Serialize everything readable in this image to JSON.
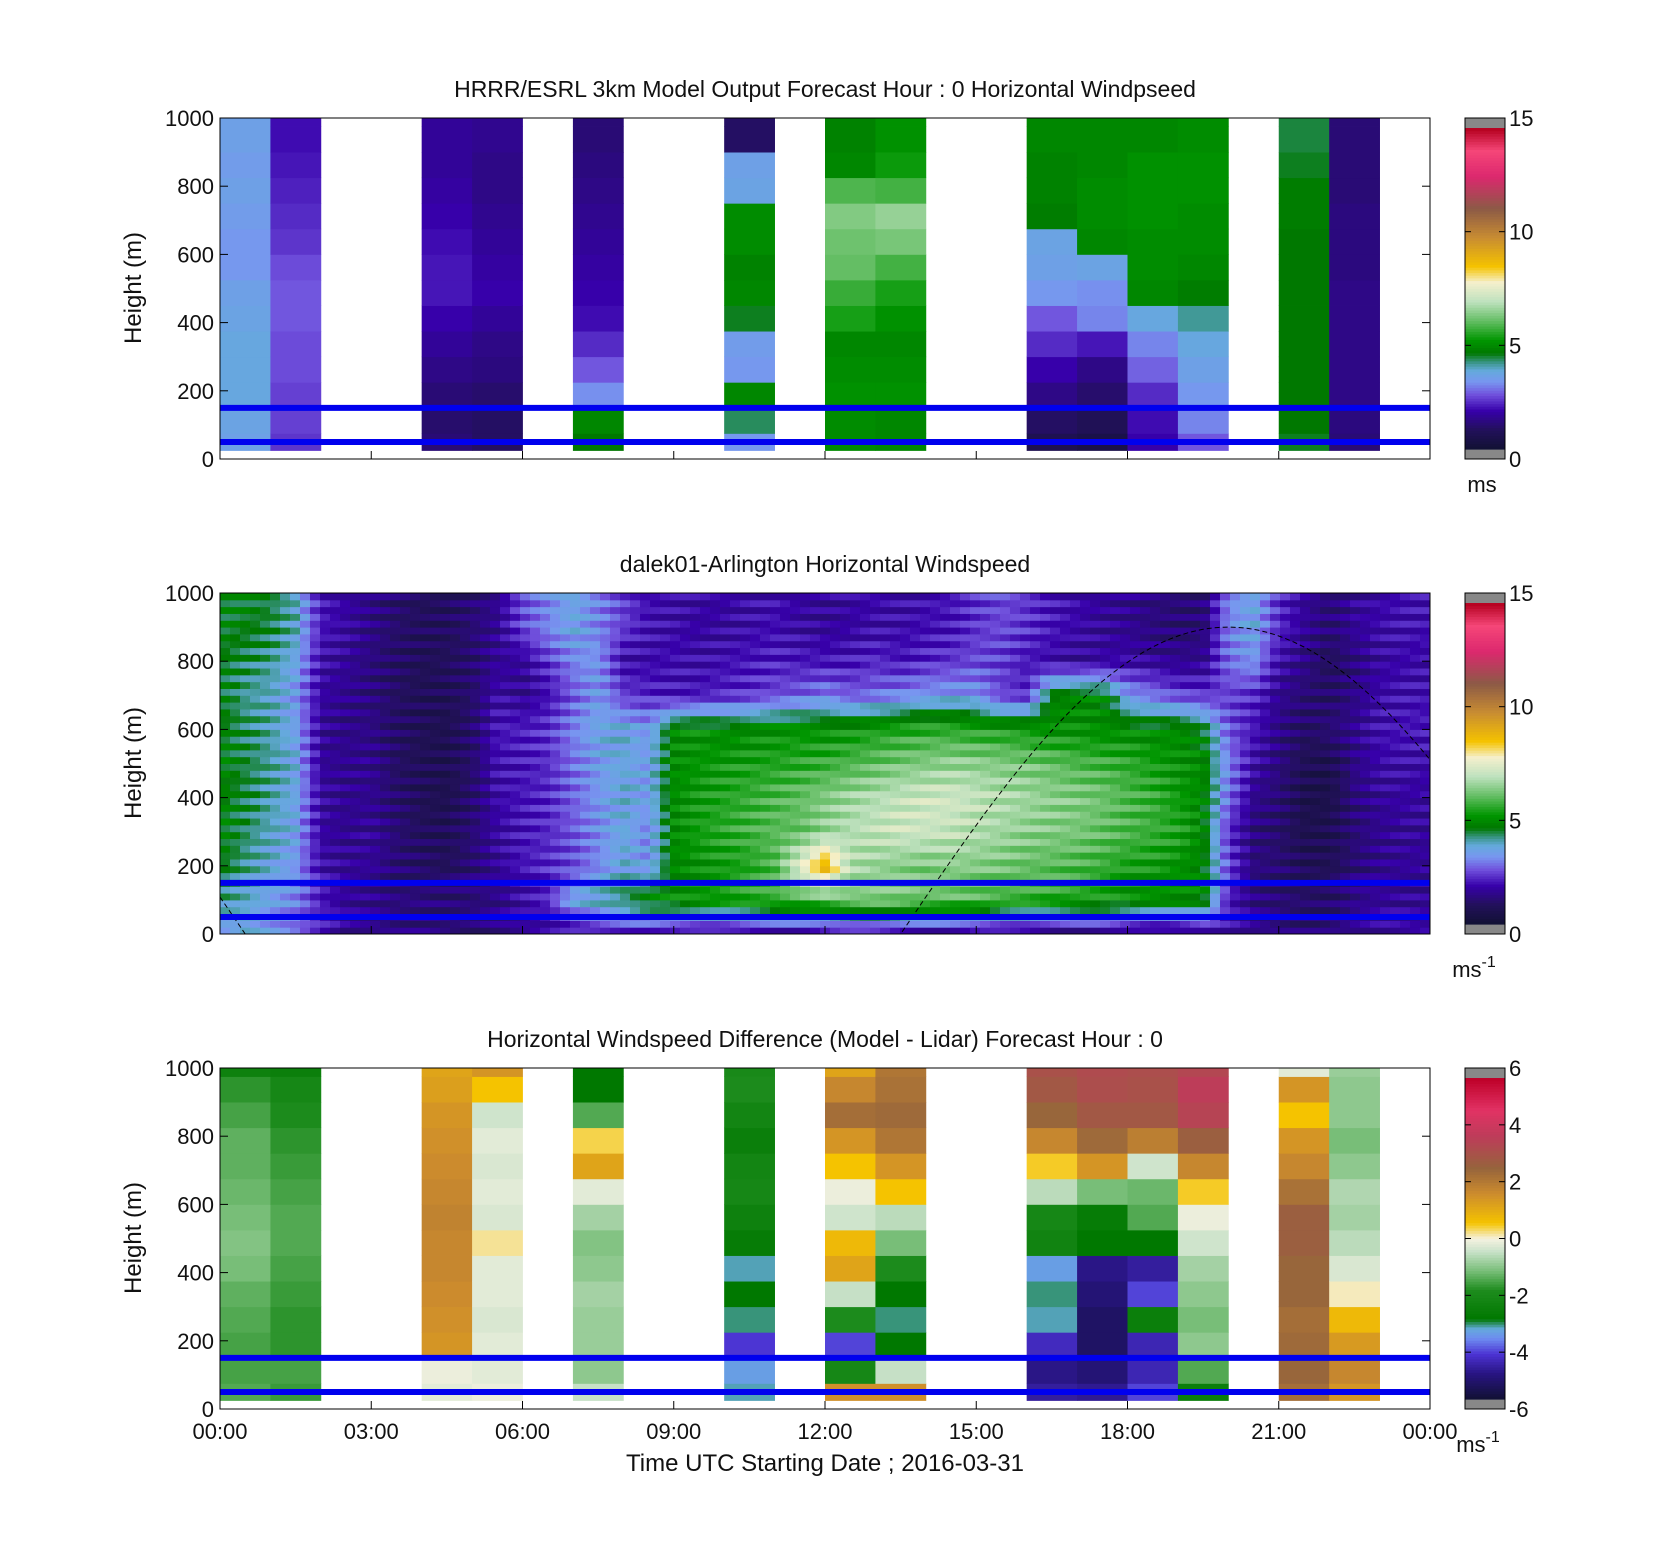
{
  "figure": {
    "xlabel": "Time UTC  Starting Date ; 2016-03-31",
    "x_ticks": [
      "00:00",
      "03:00",
      "06:00",
      "09:00",
      "12:00",
      "15:00",
      "18:00",
      "21:00",
      "00:00"
    ],
    "x_range_hours": [
      0,
      24
    ]
  },
  "chart_data": [
    {
      "type": "heatmap",
      "title": "HRRR/ESRL 3km Model Output   Forecast Hour : 0 Horizontal Windpseed",
      "ylabel": "Height (m)",
      "y_ticks": [
        "0",
        "200",
        "400",
        "600",
        "800",
        "1000"
      ],
      "ylim": [
        0,
        1000
      ],
      "colorbar": {
        "ticks": [
          "0",
          "5",
          "10",
          "15"
        ],
        "range": [
          0,
          15
        ],
        "unit": "ms",
        "unit_sup": ""
      },
      "reference_lines_m": [
        50,
        150
      ],
      "columns_start_hour": [
        0,
        1,
        4,
        5,
        7,
        10,
        12,
        13,
        16,
        17,
        18,
        19,
        21,
        22
      ],
      "column_width_hours": 1,
      "data_bottom_m": 25,
      "heights_m": [
        0,
        75,
        150,
        225,
        300,
        375,
        450,
        525,
        600,
        675,
        750,
        825,
        900,
        975
      ],
      "columns": [
        [
          3.4,
          3.5,
          3.6,
          3.6,
          3.6,
          3.5,
          3.4,
          3.2,
          3.2,
          3.3,
          3.4,
          3.3,
          3.4,
          3.4
        ],
        [
          2.3,
          2.4,
          2.4,
          2.5,
          2.5,
          2.6,
          2.6,
          2.5,
          2.3,
          2.2,
          2.1,
          2.0,
          1.9,
          1.9
        ],
        [
          1.2,
          1.1,
          1.2,
          1.4,
          1.6,
          1.8,
          2.0,
          2.0,
          1.9,
          1.8,
          1.7,
          1.6,
          1.6,
          1.6
        ],
        [
          1.0,
          1.0,
          1.1,
          1.3,
          1.4,
          1.6,
          1.8,
          1.7,
          1.6,
          1.5,
          1.4,
          1.4,
          1.5,
          1.5
        ],
        [
          4.5,
          4.8,
          3.1,
          2.6,
          2.2,
          1.9,
          1.8,
          1.7,
          1.6,
          1.5,
          1.4,
          1.3,
          1.2,
          1.2
        ],
        [
          3.2,
          4.2,
          4.8,
          3.2,
          3.3,
          4.4,
          4.8,
          4.7,
          4.9,
          4.9,
          3.5,
          3.4,
          1.0,
          1.0
        ],
        [
          4.9,
          4.9,
          5.0,
          4.9,
          4.8,
          5.3,
          5.6,
          6.0,
          6.1,
          6.3,
          5.8,
          4.8,
          4.7,
          4.7
        ],
        [
          4.8,
          4.8,
          5.0,
          4.9,
          4.8,
          5.0,
          5.3,
          5.7,
          6.2,
          6.5,
          5.7,
          5.2,
          5.0,
          5.0
        ],
        [
          0.7,
          1.0,
          1.4,
          1.8,
          2.2,
          2.6,
          3.2,
          3.4,
          3.5,
          4.6,
          4.7,
          4.7,
          4.8,
          4.8
        ],
        [
          0.5,
          0.8,
          1.1,
          1.4,
          2.0,
          3.0,
          3.1,
          3.5,
          4.8,
          4.9,
          4.9,
          4.8,
          4.8,
          4.8
        ],
        [
          1.8,
          1.9,
          2.2,
          2.7,
          3.0,
          3.6,
          4.8,
          4.9,
          4.9,
          5.0,
          5.0,
          5.0,
          4.8,
          4.8
        ],
        [
          2.6,
          3.0,
          3.2,
          3.4,
          3.6,
          4.0,
          4.6,
          4.8,
          4.9,
          4.9,
          5.0,
          5.0,
          4.9,
          4.9
        ],
        [
          4.4,
          4.5,
          4.5,
          4.5,
          4.5,
          4.5,
          4.5,
          4.5,
          4.5,
          4.6,
          4.6,
          4.4,
          4.3,
          4.3
        ],
        [
          1.2,
          1.3,
          1.4,
          1.4,
          1.4,
          1.4,
          1.4,
          1.3,
          1.3,
          1.3,
          1.2,
          1.2,
          1.2,
          1.2
        ]
      ]
    },
    {
      "type": "heatmap",
      "title": "dalek01-Arlington  Horizontal Windspeed",
      "ylabel": "Height (m)",
      "y_ticks": [
        "0",
        "200",
        "400",
        "600",
        "800",
        "1000"
      ],
      "ylim": [
        0,
        1000
      ],
      "colorbar": {
        "ticks": [
          "0",
          "5",
          "10",
          "15"
        ],
        "range": [
          0,
          15
        ],
        "unit": "ms",
        "unit_sup": "-1"
      },
      "reference_lines_m": [
        50,
        150
      ],
      "time_hours": [
        0.0,
        0.5,
        1.0,
        1.5,
        2.0,
        2.5,
        3.0,
        3.5,
        4.0,
        4.5,
        5.0,
        5.5,
        6.0,
        6.5,
        7.0,
        7.5,
        8.0,
        8.5,
        9.0,
        9.5,
        10.0,
        10.5,
        11.0,
        11.5,
        12.0,
        12.5,
        13.0,
        13.5,
        14.0,
        14.5,
        15.0,
        15.5,
        16.0,
        16.5,
        17.0,
        17.5,
        18.0,
        18.5,
        19.0,
        19.5,
        20.0,
        20.5,
        21.0,
        21.5,
        22.0,
        22.5,
        23.0,
        23.5
      ],
      "heights_m": [
        0,
        100,
        200,
        300,
        400,
        500,
        600,
        700,
        800,
        900
      ],
      "columns": [
        [
          3.0,
          4.0,
          4.5,
          4.7,
          4.7,
          4.7,
          4.6,
          4.5,
          4.5,
          4.5
        ],
        [
          3.5,
          3.8,
          4.0,
          4.2,
          4.3,
          4.3,
          4.2,
          4.0,
          4.2,
          4.5
        ],
        [
          3.2,
          3.4,
          3.6,
          3.8,
          3.9,
          4.0,
          3.9,
          3.8,
          4.0,
          4.3
        ],
        [
          2.8,
          3.0,
          3.2,
          3.4,
          3.5,
          3.5,
          3.4,
          3.2,
          3.5,
          3.8
        ],
        [
          2.2,
          2.0,
          1.8,
          1.7,
          1.7,
          1.6,
          1.6,
          1.7,
          1.8,
          2.0
        ],
        [
          1.5,
          1.6,
          1.6,
          1.5,
          1.5,
          1.5,
          1.4,
          1.5,
          1.6,
          1.7
        ],
        [
          1.4,
          1.5,
          1.6,
          1.6,
          1.5,
          1.5,
          1.4,
          1.3,
          1.3,
          1.4
        ],
        [
          1.3,
          1.3,
          1.2,
          1.2,
          1.1,
          1.0,
          1.0,
          1.0,
          1.0,
          1.1
        ],
        [
          1.4,
          1.3,
          1.0,
          0.9,
          0.8,
          0.8,
          0.8,
          0.8,
          0.8,
          0.9
        ],
        [
          1.3,
          1.2,
          0.9,
          0.8,
          0.7,
          0.7,
          0.7,
          0.8,
          0.9,
          0.9
        ],
        [
          1.2,
          1.2,
          1.2,
          1.2,
          1.1,
          1.1,
          1.1,
          1.1,
          1.1,
          1.2
        ],
        [
          1.4,
          1.4,
          1.6,
          1.7,
          1.8,
          1.9,
          2.0,
          1.8,
          1.6,
          1.5
        ],
        [
          1.5,
          1.8,
          2.0,
          2.0,
          2.0,
          2.0,
          2.1,
          1.5,
          1.6,
          2.5
        ],
        [
          1.6,
          2.2,
          2.2,
          2.2,
          2.2,
          2.2,
          2.3,
          1.9,
          2.3,
          3.0
        ],
        [
          1.8,
          3.5,
          2.5,
          2.6,
          2.7,
          2.8,
          3.0,
          2.6,
          3.0,
          3.5
        ],
        [
          2.0,
          3.8,
          3.0,
          3.1,
          3.2,
          3.3,
          3.5,
          3.3,
          3.2,
          3.0
        ],
        [
          2.0,
          4.2,
          3.6,
          3.6,
          3.6,
          3.6,
          3.6,
          2.4,
          1.8,
          2.4
        ],
        [
          1.8,
          4.8,
          3.2,
          3.0,
          3.3,
          3.3,
          3.2,
          2.2,
          1.8,
          1.9
        ],
        [
          1.6,
          5.0,
          4.8,
          4.9,
          4.9,
          4.9,
          4.9,
          2.0,
          1.9,
          1.8
        ],
        [
          1.5,
          5.2,
          5.0,
          5.3,
          5.2,
          5.1,
          5.0,
          2.0,
          1.8,
          1.7
        ],
        [
          1.5,
          5.3,
          5.2,
          5.5,
          5.4,
          5.2,
          4.8,
          2.2,
          1.9,
          1.7
        ],
        [
          1.6,
          5.5,
          5.4,
          5.7,
          5.6,
          5.3,
          4.9,
          2.3,
          2.0,
          1.8
        ],
        [
          1.5,
          5.6,
          5.8,
          5.9,
          5.8,
          5.4,
          5.0,
          2.5,
          2.1,
          1.9
        ],
        [
          1.4,
          5.8,
          7.5,
          6.0,
          6.0,
          5.5,
          5.1,
          2.7,
          2.0,
          1.7
        ],
        [
          1.5,
          6.0,
          9.0,
          6.5,
          6.3,
          5.6,
          5.0,
          3.0,
          2.0,
          1.6
        ],
        [
          1.6,
          6.2,
          6.8,
          6.8,
          6.6,
          5.8,
          5.1,
          2.6,
          2.0,
          1.7
        ],
        [
          1.6,
          6.3,
          6.5,
          7.0,
          6.8,
          6.0,
          5.3,
          2.8,
          2.2,
          1.8
        ],
        [
          1.5,
          6.2,
          6.3,
          7.2,
          7.0,
          6.2,
          5.4,
          3.0,
          2.0,
          1.8
        ],
        [
          1.4,
          6.0,
          6.2,
          7.1,
          7.2,
          6.3,
          5.5,
          3.2,
          2.2,
          1.9
        ],
        [
          1.3,
          6.0,
          6.4,
          7.0,
          7.2,
          6.5,
          5.5,
          3.3,
          2.3,
          2.0
        ],
        [
          1.4,
          5.9,
          6.3,
          6.8,
          7.0,
          6.4,
          5.4,
          3.2,
          2.5,
          2.3
        ],
        [
          1.3,
          5.7,
          6.2,
          6.6,
          6.8,
          6.3,
          5.3,
          2.4,
          2.4,
          2.5
        ],
        [
          1.2,
          5.6,
          6.0,
          6.4,
          6.6,
          6.2,
          5.2,
          2.2,
          2.0,
          2.3
        ],
        [
          1.1,
          5.4,
          5.9,
          6.3,
          6.4,
          6.0,
          5.0,
          4.6,
          1.8,
          2.0
        ],
        [
          1.2,
          5.3,
          5.8,
          6.2,
          6.3,
          5.8,
          5.0,
          4.8,
          1.6,
          1.8
        ],
        [
          1.3,
          5.2,
          5.6,
          6.0,
          6.1,
          5.7,
          4.9,
          4.8,
          1.7,
          1.6
        ],
        [
          1.2,
          5.0,
          5.3,
          5.8,
          5.8,
          5.5,
          4.9,
          3.2,
          1.8,
          1.5
        ],
        [
          1.1,
          5.0,
          5.2,
          5.6,
          5.6,
          5.3,
          4.8,
          2.9,
          1.6,
          1.3
        ],
        [
          1.2,
          4.9,
          5.0,
          5.4,
          5.2,
          5.0,
          4.9,
          2.5,
          1.5,
          1.2
        ],
        [
          1.5,
          4.8,
          4.7,
          4.8,
          4.8,
          4.9,
          4.5,
          2.3,
          1.5,
          1.2
        ],
        [
          1.8,
          2.0,
          2.5,
          2.2,
          2.8,
          3.0,
          2.6,
          2.4,
          2.8,
          3.0
        ],
        [
          1.5,
          1.4,
          1.3,
          1.3,
          1.5,
          1.8,
          2.0,
          2.2,
          3.2,
          3.5
        ],
        [
          1.3,
          1.2,
          1.2,
          1.1,
          1.2,
          1.3,
          1.4,
          1.5,
          1.8,
          2.2
        ],
        [
          1.2,
          1.1,
          0.8,
          0.7,
          0.6,
          0.8,
          1.0,
          1.2,
          1.4,
          1.6
        ],
        [
          1.4,
          1.0,
          0.8,
          0.7,
          0.6,
          0.6,
          1.2,
          1.0,
          0.9,
          1.2
        ],
        [
          1.6,
          1.4,
          1.2,
          1.2,
          1.3,
          1.4,
          1.5,
          1.4,
          1.3,
          1.6
        ],
        [
          1.7,
          1.6,
          1.5,
          1.5,
          1.6,
          1.8,
          1.9,
          1.8,
          1.7,
          1.8
        ],
        [
          1.7,
          1.6,
          1.6,
          1.6,
          1.7,
          1.8,
          2.0,
          1.9,
          1.8,
          1.9
        ]
      ]
    },
    {
      "type": "heatmap",
      "title": "Horizontal Windspeed Difference (Model - Lidar) Forecast Hour : 0",
      "ylabel": "Height (m)",
      "y_ticks": [
        "0",
        "200",
        "400",
        "600",
        "800",
        "1000"
      ],
      "ylim": [
        0,
        1000
      ],
      "colorbar": {
        "ticks": [
          "-6",
          "-4",
          "-2",
          "0",
          "2",
          "4",
          "6"
        ],
        "range": [
          -6,
          6
        ],
        "unit": "ms",
        "unit_sup": "-1"
      },
      "reference_lines_m": [
        50,
        150
      ],
      "columns_start_hour": [
        0,
        1,
        4,
        5,
        7,
        10,
        12,
        13,
        16,
        17,
        18,
        19,
        21,
        22
      ],
      "column_width_hours": 1,
      "data_bottom_m": 25,
      "heights_m": [
        0,
        75,
        150,
        225,
        300,
        375,
        450,
        525,
        600,
        675,
        750,
        825,
        900,
        975
      ],
      "columns": [
        [
          -1.5,
          -1.6,
          -1.6,
          -1.5,
          -1.4,
          -1.2,
          -1.1,
          -1.2,
          -1.3,
          -1.4,
          -1.4,
          -1.6,
          -1.8,
          -2.5
        ],
        [
          -1.7,
          -1.6,
          -1.8,
          -1.8,
          -1.7,
          -1.6,
          -1.5,
          -1.5,
          -1.6,
          -1.7,
          -1.8,
          -2.0,
          -2.2,
          -2.6
        ],
        [
          -0.2,
          -0.1,
          1.5,
          1.6,
          1.7,
          1.8,
          1.8,
          1.9,
          1.8,
          1.7,
          1.6,
          1.5,
          1.3,
          1.2
        ],
        [
          -0.1,
          -0.2,
          -0.2,
          -0.3,
          -0.2,
          -0.2,
          0.2,
          -0.3,
          -0.2,
          -0.3,
          -0.2,
          -0.4,
          0.6,
          1.5
        ],
        [
          -0.5,
          -1.0,
          -0.9,
          -0.9,
          -0.8,
          -1.0,
          -1.1,
          -0.8,
          -0.2,
          1.2,
          0.4,
          -1.5,
          -3.0,
          -3.0
        ],
        [
          -3.3,
          -3.5,
          -4.3,
          -3.2,
          -3.0,
          -3.3,
          -2.8,
          -2.5,
          -2.2,
          -2.3,
          -2.6,
          -2.3,
          -2.0,
          -2.1
        ],
        [
          1.6,
          -2.2,
          -4.2,
          -2.0,
          -0.5,
          1.2,
          0.8,
          -0.4,
          -0.1,
          0.6,
          1.5,
          2.4,
          1.8,
          1.2
        ],
        [
          1.6,
          -0.5,
          -3.0,
          -3.2,
          -3.0,
          -2.0,
          -1.2,
          -0.6,
          0.6,
          1.5,
          2.2,
          2.5,
          2.3,
          2.2
        ],
        [
          -4.8,
          -5.0,
          -4.5,
          -3.3,
          -3.2,
          -3.5,
          -2.4,
          -2.2,
          -0.6,
          0.5,
          1.8,
          2.6,
          3.0,
          3.2
        ],
        [
          -4.9,
          -5.2,
          -5.4,
          -5.4,
          -5.2,
          -5.0,
          -3.0,
          -2.8,
          -1.2,
          1.5,
          2.5,
          3.0,
          3.3,
          3.4
        ],
        [
          -4.2,
          -4.6,
          -4.6,
          -2.6,
          -4.2,
          -4.8,
          -3.0,
          -1.5,
          -1.3,
          -0.4,
          2.0,
          3.0,
          3.2,
          3.3
        ],
        [
          -2.6,
          -1.5,
          -1.0,
          -1.2,
          -1.0,
          -0.8,
          -0.4,
          -0.1,
          0.5,
          1.8,
          2.8,
          3.6,
          3.8,
          3.5
        ],
        [
          2.4,
          2.6,
          2.5,
          2.4,
          2.6,
          2.6,
          2.8,
          2.8,
          2.3,
          1.8,
          1.5,
          0.6,
          1.5,
          -0.2
        ],
        [
          1.5,
          1.8,
          1.4,
          0.8,
          0.1,
          -0.3,
          -0.6,
          -0.8,
          -0.7,
          -1.0,
          -1.2,
          -1.0,
          -1.0,
          -0.9
        ]
      ]
    }
  ]
}
